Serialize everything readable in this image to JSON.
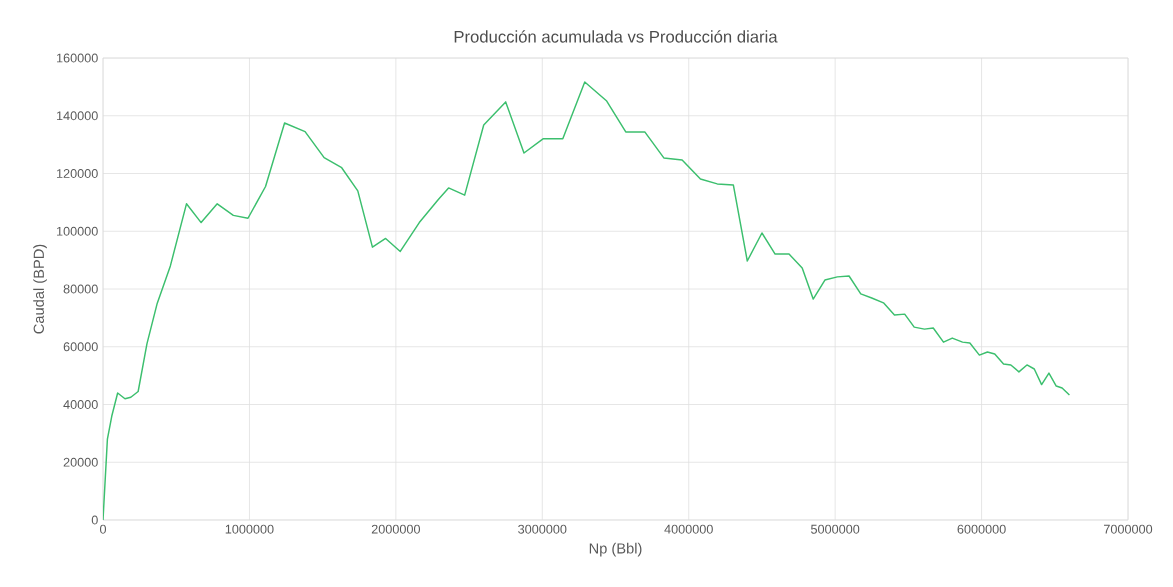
{
  "chart_data": {
    "type": "line",
    "title": "Producción acumulada vs Producción diaria",
    "xlabel": "Np (Bbl)",
    "ylabel": "Caudal (BPD)",
    "x": [
      0,
      30000,
      60000,
      100000,
      150000,
      190000,
      240000,
      300000,
      370000,
      460000,
      570000,
      670000,
      780000,
      890000,
      990000,
      1110000,
      1240000,
      1380000,
      1510000,
      1630000,
      1740000,
      1840000,
      1930000,
      2030000,
      2160000,
      2290000,
      2360000,
      2470000,
      2600000,
      2750000,
      2875000,
      3005000,
      3140000,
      3290000,
      3440000,
      3570000,
      3700000,
      3830000,
      3955000,
      4080000,
      4195000,
      4305000,
      4400000,
      4500000,
      4590000,
      4685000,
      4775000,
      4850000,
      4930000,
      5015000,
      5095000,
      5175000,
      5250000,
      5330000,
      5405000,
      5475000,
      5540000,
      5610000,
      5670000,
      5740000,
      5800000,
      5870000,
      5920000,
      5985000,
      6040000,
      6090000,
      6150000,
      6200000,
      6255000,
      6310000,
      6360000,
      6410000,
      6460000,
      6510000,
      6550000,
      6600000
    ],
    "values": [
      0,
      28000,
      36000,
      44000,
      42000,
      42500,
      44500,
      61000,
      75000,
      88000,
      109500,
      103000,
      109500,
      105500,
      104500,
      115500,
      137500,
      134500,
      125500,
      122000,
      114000,
      94500,
      97500,
      93000,
      103000,
      111000,
      115000,
      112500,
      136800,
      144800,
      127100,
      132000,
      132000,
      151700,
      145100,
      134400,
      134400,
      125400,
      124700,
      118100,
      116400,
      116000,
      89700,
      99400,
      92100,
      92100,
      87300,
      76500,
      83100,
      84200,
      84500,
      78300,
      76900,
      75200,
      71000,
      71300,
      66800,
      66100,
      66500,
      61600,
      63000,
      61600,
      61300,
      57100,
      58200,
      57500,
      54000,
      53700,
      51300,
      53700,
      52300,
      46900,
      50900,
      46400,
      45700,
      43300
    ],
    "color": "#3cbf6e",
    "xlim": [
      0,
      7000000
    ],
    "xticks": [
      0,
      1000000,
      2000000,
      3000000,
      4000000,
      5000000,
      6000000,
      7000000
    ],
    "ylim": [
      0,
      160000
    ],
    "yticks": [
      0,
      20000,
      40000,
      60000,
      80000,
      100000,
      120000,
      140000,
      160000
    ],
    "grid": true,
    "marker": "none",
    "line_style": "solid"
  }
}
